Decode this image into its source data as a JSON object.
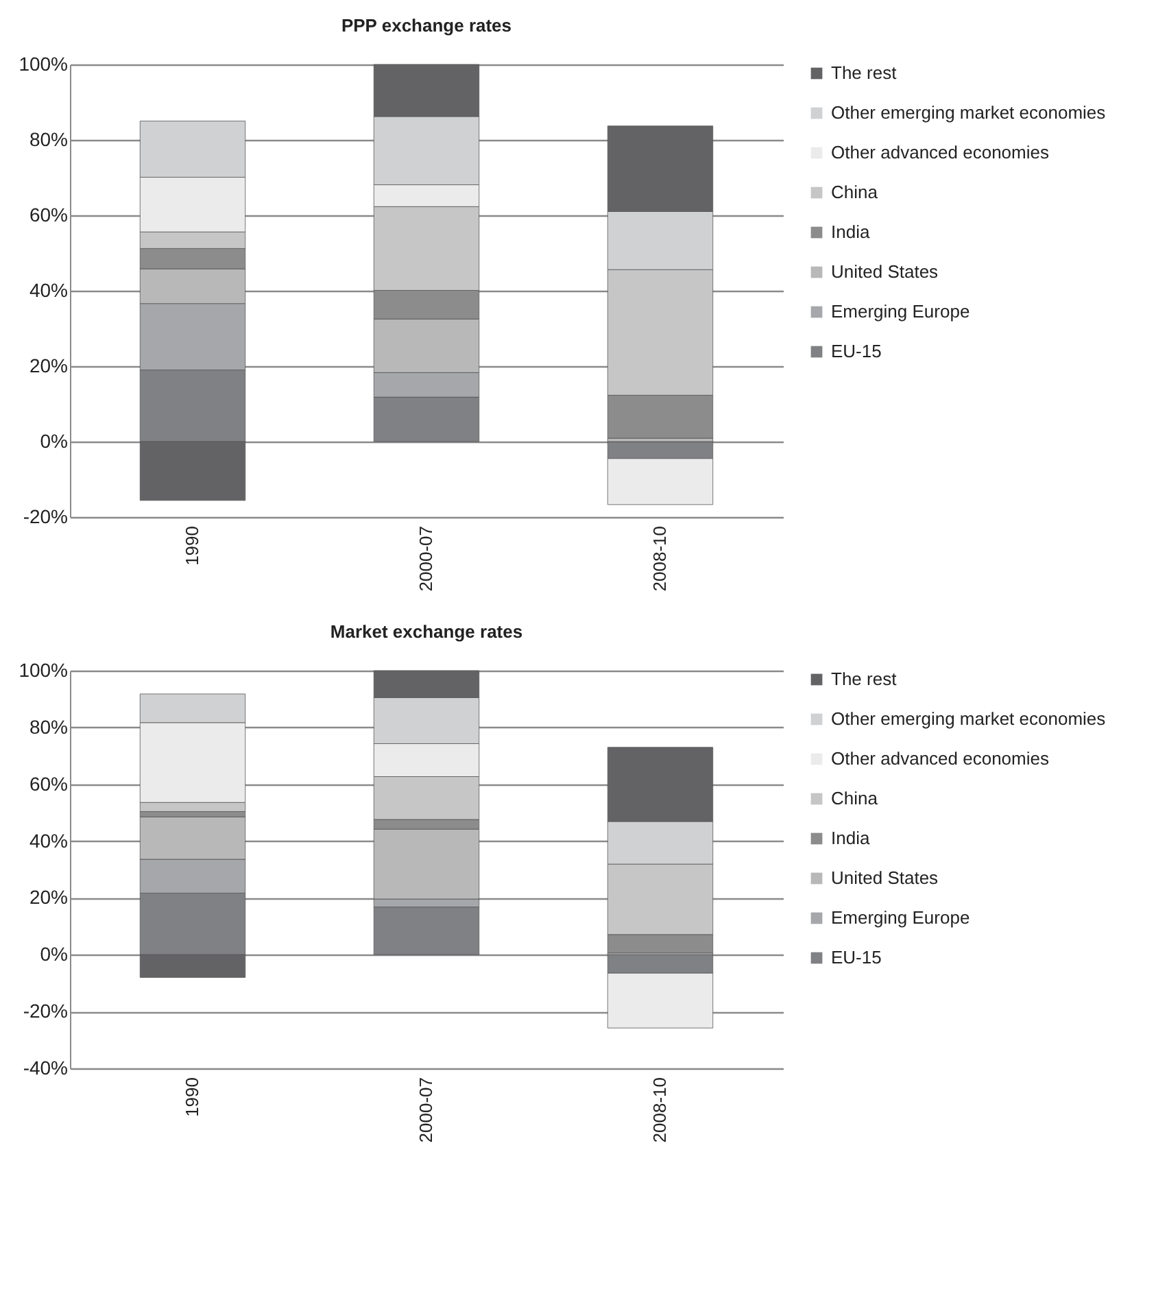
{
  "chart_data": [
    {
      "type": "bar",
      "title": "PPP exchange rates",
      "stacked": true,
      "legend": "right",
      "grid": "y",
      "categories": [
        "1990",
        "2000-07",
        "2008-10"
      ],
      "ylim": [
        -20,
        100
      ],
      "yticks": [
        {
          "value": -20,
          "label": "-20%"
        },
        {
          "value": 0,
          "label": "0%"
        },
        {
          "value": 20,
          "label": "20%"
        },
        {
          "value": 40,
          "label": "40%"
        },
        {
          "value": 60,
          "label": "60%"
        },
        {
          "value": 80,
          "label": "80%"
        },
        {
          "value": 100,
          "label": "100%"
        }
      ],
      "series": [
        {
          "name": "EU-15",
          "color": "#808184",
          "values": [
            19.0,
            11.8,
            -4.5
          ]
        },
        {
          "name": "Emerging Europe",
          "color": "#a6a7aa",
          "values": [
            17.6,
            6.5,
            0
          ]
        },
        {
          "name": "United States",
          "color": "#b8b8b8",
          "values": [
            9.2,
            14.2,
            0.9
          ]
        },
        {
          "name": "India",
          "color": "#8c8c8c",
          "values": [
            5.4,
            7.6,
            11.4
          ]
        },
        {
          "name": "China",
          "color": "#c6c6c6",
          "values": [
            4.4,
            22.2,
            33.3
          ]
        },
        {
          "name": "Other advanced economies",
          "color": "#ebebeb",
          "values": [
            14.5,
            5.8,
            -12.2
          ]
        },
        {
          "name": "Other emerging market economies",
          "color": "#d0d1d3",
          "values": [
            14.9,
            18.1,
            15.4
          ]
        },
        {
          "name": "The rest",
          "color": "#636365",
          "values": [
            -15.6,
            13.8,
            22.7
          ]
        }
      ]
    },
    {
      "type": "bar",
      "title": "Market exchange rates",
      "stacked": true,
      "legend": "right",
      "grid": "y",
      "categories": [
        "1990",
        "2000-07",
        "2008-10"
      ],
      "ylim": [
        -40,
        100
      ],
      "yticks": [
        {
          "value": -40,
          "label": "-40%"
        },
        {
          "value": -20,
          "label": "-20%"
        },
        {
          "value": 0,
          "label": "0%"
        },
        {
          "value": 20,
          "label": "20%"
        },
        {
          "value": 40,
          "label": "40%"
        },
        {
          "value": 60,
          "label": "60%"
        },
        {
          "value": 80,
          "label": "80%"
        },
        {
          "value": 100,
          "label": "100%"
        }
      ],
      "series": [
        {
          "name": "EU-15",
          "color": "#808184",
          "values": [
            21.7,
            16.8,
            -6.5
          ]
        },
        {
          "name": "Emerging Europe",
          "color": "#a6a7aa",
          "values": [
            11.9,
            2.8,
            0
          ]
        },
        {
          "name": "United States",
          "color": "#b8b8b8",
          "values": [
            14.9,
            24.6,
            0.6
          ]
        },
        {
          "name": "India",
          "color": "#8c8c8c",
          "values": [
            1.9,
            3.4,
            6.5
          ]
        },
        {
          "name": "China",
          "color": "#c6c6c6",
          "values": [
            3.2,
            15.1,
            24.8
          ]
        },
        {
          "name": "Other advanced economies",
          "color": "#ebebeb",
          "values": [
            28.1,
            11.6,
            -19.3
          ]
        },
        {
          "name": "Other emerging market economies",
          "color": "#d0d1d3",
          "values": [
            10.1,
            16.2,
            15.0
          ]
        },
        {
          "name": "The rest",
          "color": "#636365",
          "values": [
            -8.0,
            9.5,
            26.1
          ]
        }
      ]
    }
  ]
}
